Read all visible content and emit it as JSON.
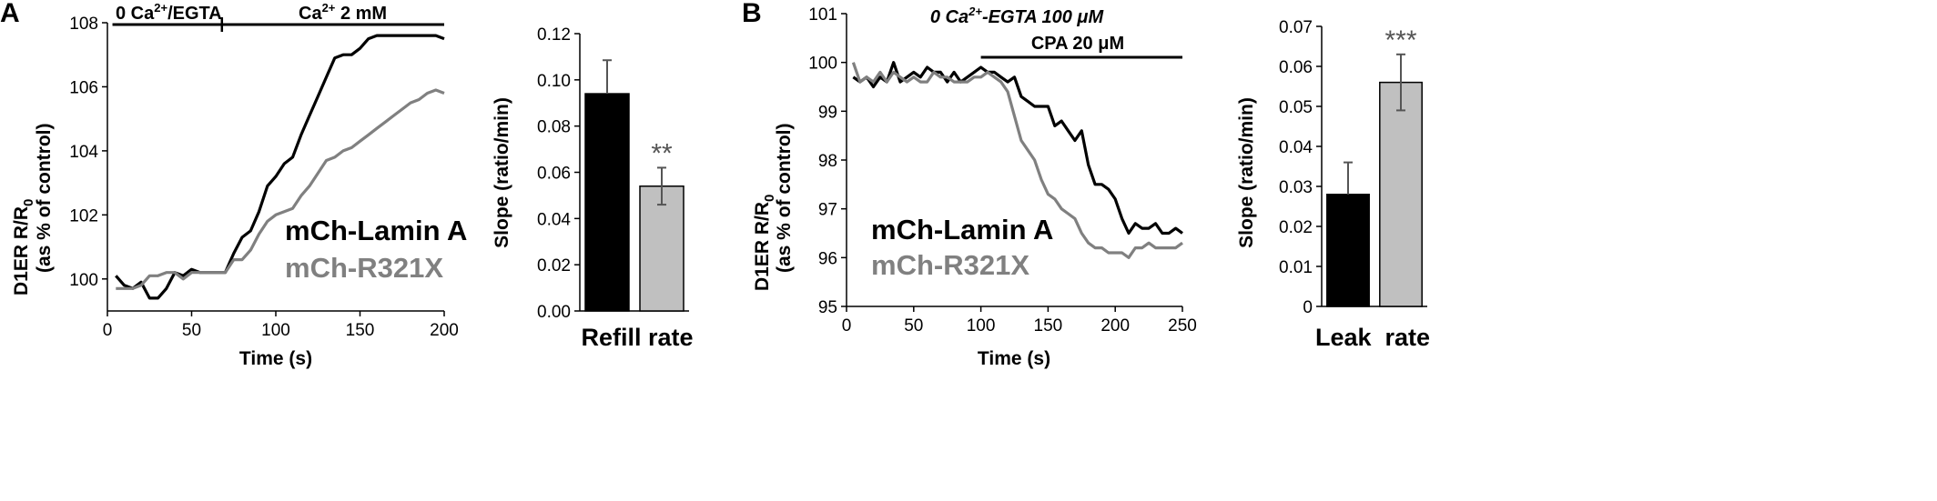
{
  "panels": {
    "A": {
      "letter": "A"
    },
    "B": {
      "letter": "B"
    }
  },
  "chart_data": [
    {
      "id": "A-trace",
      "type": "line",
      "xlabel": "Time (s)",
      "ylabel_line1": "D1ER R/R",
      "ylabel_sub": "0",
      "ylabel_line2": "(as % of control)",
      "xlim": [
        0,
        200
      ],
      "ylim": [
        99,
        108
      ],
      "xticks": [
        0,
        50,
        100,
        150,
        200
      ],
      "yticks": [
        100,
        102,
        104,
        106,
        108
      ],
      "ytick_labels": [
        "100",
        "102",
        "104",
        "106",
        "108"
      ],
      "conditions": [
        {
          "label_pre": "0 Ca",
          "label_sup": "2+",
          "label_post": "/EGTA",
          "x_start": 3,
          "x_end": 68
        },
        {
          "label_pre": "Ca",
          "label_sup": "2+",
          "label_post": " 2 mM",
          "x_start": 68,
          "x_end": 200
        }
      ],
      "series": [
        {
          "name": "mCh-Lamin A",
          "color": "#000000",
          "x": [
            5,
            10,
            15,
            20,
            25,
            30,
            35,
            40,
            45,
            50,
            55,
            60,
            65,
            70,
            75,
            80,
            85,
            90,
            95,
            100,
            105,
            110,
            115,
            120,
            125,
            130,
            135,
            140,
            145,
            150,
            155,
            160,
            165,
            170,
            175,
            180,
            185,
            190,
            195,
            200
          ],
          "y": [
            100.1,
            99.8,
            99.7,
            99.9,
            99.4,
            99.4,
            99.7,
            100.2,
            100.1,
            100.3,
            100.2,
            100.2,
            100.2,
            100.2,
            100.8,
            101.3,
            101.5,
            102.1,
            102.9,
            103.2,
            103.6,
            103.8,
            104.5,
            105.1,
            105.7,
            106.3,
            106.9,
            107.0,
            107.0,
            107.2,
            107.5,
            107.6,
            107.6,
            107.6,
            107.6,
            107.6,
            107.6,
            107.6,
            107.6,
            107.5
          ]
        },
        {
          "name": "mCh-R321X",
          "color": "#808080",
          "x": [
            5,
            10,
            15,
            20,
            25,
            30,
            35,
            40,
            45,
            50,
            55,
            60,
            65,
            70,
            75,
            80,
            85,
            90,
            95,
            100,
            105,
            110,
            115,
            120,
            125,
            130,
            135,
            140,
            145,
            150,
            155,
            160,
            165,
            170,
            175,
            180,
            185,
            190,
            195,
            200
          ],
          "y": [
            99.7,
            99.7,
            99.7,
            99.8,
            100.1,
            100.1,
            100.2,
            100.2,
            100.0,
            100.2,
            100.2,
            100.2,
            100.2,
            100.2,
            100.6,
            100.6,
            100.9,
            101.4,
            101.8,
            102.0,
            102.1,
            102.2,
            102.6,
            102.9,
            103.3,
            103.7,
            103.8,
            104.0,
            104.1,
            104.3,
            104.5,
            104.7,
            104.9,
            105.1,
            105.3,
            105.5,
            105.6,
            105.8,
            105.9,
            105.8
          ]
        }
      ]
    },
    {
      "id": "A-bar",
      "type": "bar",
      "ylabel": "Slope (ratio/min)",
      "category_label": "Refill rate",
      "ylim": [
        0,
        0.12
      ],
      "yticks": [
        0,
        0.02,
        0.04,
        0.06,
        0.08,
        0.1,
        0.12
      ],
      "ytick_labels": [
        "0.00",
        "0.02",
        "0.04",
        "0.06",
        "0.08",
        "0.10",
        "0.12"
      ],
      "bars": [
        {
          "value": 0.094,
          "error": 0.0145,
          "color": "#000000",
          "sig": ""
        },
        {
          "value": 0.054,
          "error": 0.008,
          "color": "#c0c0c0",
          "sig": "**"
        }
      ]
    },
    {
      "id": "B-trace",
      "type": "line",
      "xlabel": "Time (s)",
      "ylabel_line1": "D1ER R/R",
      "ylabel_sub": "0",
      "ylabel_line2": "(as % of control)",
      "xlim": [
        0,
        250
      ],
      "ylim": [
        95,
        101
      ],
      "xticks": [
        0,
        50,
        100,
        150,
        200,
        250
      ],
      "yticks": [
        95,
        96,
        97,
        98,
        99,
        100,
        101
      ],
      "ytick_labels": [
        "95",
        "96",
        "97",
        "98",
        "99",
        "100",
        "101"
      ],
      "top_text_pre": "0 Ca",
      "top_text_sup": "2+",
      "top_text_post": "-EGTA 100 μM",
      "conditions": [
        {
          "label_pre": "CPA 20 μM",
          "label_sup": "",
          "label_post": "",
          "x_start": 100,
          "x_end": 250
        }
      ],
      "series": [
        {
          "name": "mCh-Lamin A",
          "color": "#000000",
          "x": [
            5,
            10,
            15,
            20,
            25,
            30,
            35,
            40,
            45,
            50,
            55,
            60,
            65,
            70,
            75,
            80,
            85,
            90,
            95,
            100,
            105,
            110,
            115,
            120,
            125,
            130,
            135,
            140,
            145,
            150,
            155,
            160,
            165,
            170,
            175,
            180,
            185,
            190,
            195,
            200,
            205,
            210,
            215,
            220,
            225,
            230,
            235,
            240,
            245,
            250
          ],
          "y": [
            99.7,
            99.6,
            99.7,
            99.5,
            99.7,
            99.6,
            100.0,
            99.6,
            99.7,
            99.8,
            99.7,
            99.9,
            99.8,
            99.8,
            99.6,
            99.8,
            99.6,
            99.7,
            99.8,
            99.9,
            99.8,
            99.8,
            99.7,
            99.6,
            99.7,
            99.3,
            99.2,
            99.1,
            99.1,
            99.1,
            98.7,
            98.8,
            98.6,
            98.4,
            98.6,
            97.9,
            97.5,
            97.5,
            97.4,
            97.2,
            96.8,
            96.5,
            96.7,
            96.6,
            96.6,
            96.7,
            96.5,
            96.5,
            96.6,
            96.5
          ]
        },
        {
          "name": "mCh-R321X",
          "color": "#808080",
          "x": [
            5,
            10,
            15,
            20,
            25,
            30,
            35,
            40,
            45,
            50,
            55,
            60,
            65,
            70,
            75,
            80,
            85,
            90,
            95,
            100,
            105,
            110,
            115,
            120,
            125,
            130,
            135,
            140,
            145,
            150,
            155,
            160,
            165,
            170,
            175,
            180,
            185,
            190,
            195,
            200,
            205,
            210,
            215,
            220,
            225,
            230,
            235,
            240,
            245,
            250
          ],
          "y": [
            100.0,
            99.6,
            99.7,
            99.6,
            99.8,
            99.6,
            99.8,
            99.7,
            99.6,
            99.7,
            99.6,
            99.6,
            99.8,
            99.7,
            99.7,
            99.6,
            99.6,
            99.6,
            99.7,
            99.7,
            99.8,
            99.7,
            99.6,
            99.4,
            98.9,
            98.4,
            98.2,
            98.0,
            97.6,
            97.3,
            97.2,
            97.0,
            96.9,
            96.8,
            96.5,
            96.3,
            96.2,
            96.2,
            96.1,
            96.1,
            96.1,
            96.0,
            96.2,
            96.2,
            96.3,
            96.2,
            96.2,
            96.2,
            96.2,
            96.3
          ]
        }
      ]
    },
    {
      "id": "B-bar",
      "type": "bar",
      "ylabel": "Slope (ratio/min)",
      "category_label": "Leak  rate",
      "ylim": [
        0,
        0.07
      ],
      "yticks": [
        0,
        0.01,
        0.02,
        0.03,
        0.04,
        0.05,
        0.06,
        0.07
      ],
      "ytick_labels": [
        "0",
        "0.01",
        "0.02",
        "0.03",
        "0.04",
        "0.05",
        "0.06",
        "0.07"
      ],
      "bars": [
        {
          "value": 0.028,
          "error": 0.008,
          "color": "#000000",
          "sig": ""
        },
        {
          "value": 0.056,
          "error": 0.007,
          "color": "#c0c0c0",
          "sig": "***"
        }
      ]
    }
  ]
}
